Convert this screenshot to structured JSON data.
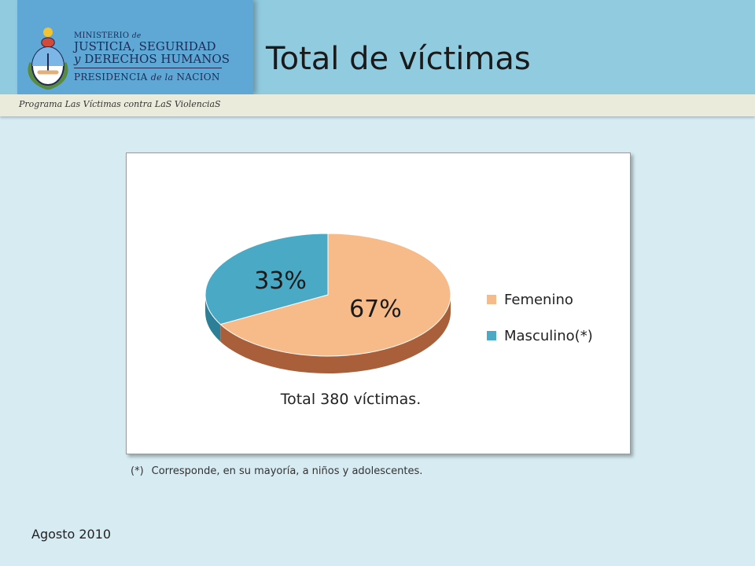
{
  "header": {
    "title": "Total de víctimas",
    "ministry_line1_a": "MINISTERIO",
    "ministry_line1_b": "de",
    "ministry_line2": "JUSTICIA, SEGURIDAD",
    "ministry_line3_a": "y",
    "ministry_line3_b": "DERECHOS HUMANOS",
    "ministry_line4_a": "PRESIDENCIA",
    "ministry_line4_b": "de la",
    "ministry_line4_c": "NACION",
    "program": "Programa Las Víctimas contra LaS ViolenciaS"
  },
  "chart_data": {
    "type": "pie",
    "categories": [
      "Femenino",
      "Masculino(*)"
    ],
    "values": [
      67,
      33
    ],
    "data_labels": [
      "67%",
      "33%"
    ],
    "colors": [
      "#f7bb8a",
      "#4aaac6"
    ],
    "side_colors": [
      "#a85f3a",
      "#2d7f98"
    ],
    "legend_position": "right",
    "total_label": "Total 380 víctimas."
  },
  "footnote": {
    "mark": "(*)",
    "text": "Corresponde, en su mayoría, a niños y adolescentes."
  },
  "date": "Agosto 2010"
}
